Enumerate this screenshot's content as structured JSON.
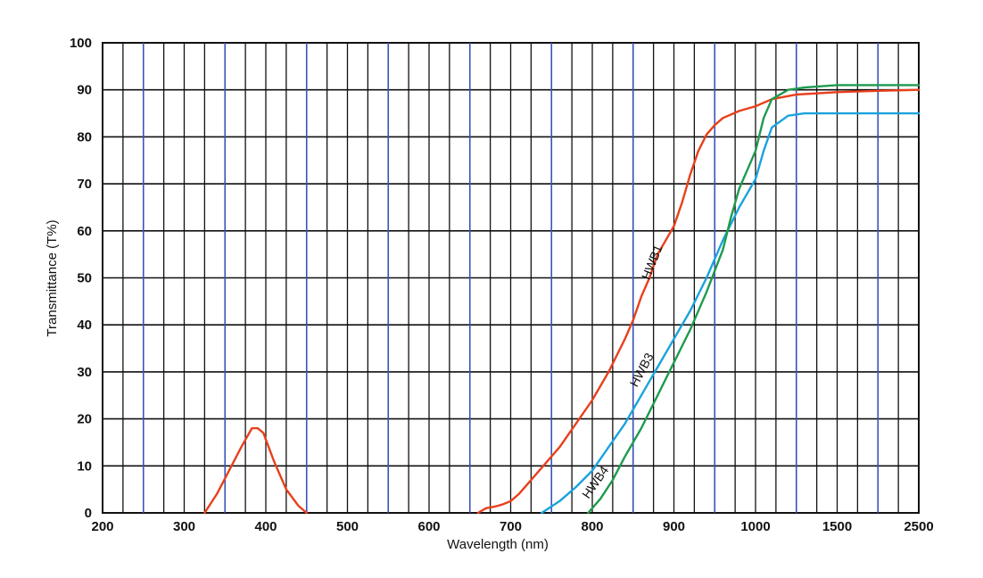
{
  "chart_data": {
    "type": "line",
    "xlabel": "Wavelength (nm)",
    "ylabel": "Transmittance (T%)",
    "ylim": [
      0,
      100
    ],
    "x_scale": "non-linear (200–1000 nm linear, then 1500, 2500)",
    "x_ticks": [
      "200",
      "300",
      "400",
      "500",
      "600",
      "700",
      "800",
      "900",
      "1000",
      "1500",
      "2500"
    ],
    "y_ticks": [
      "0",
      "10",
      "20",
      "30",
      "40",
      "50",
      "60",
      "70",
      "80",
      "90",
      "100"
    ],
    "grid": true,
    "legend": "none",
    "series": [
      {
        "name": "HWB1",
        "color": "#e8401c",
        "segments": [
          [
            [
              325,
              0
            ],
            [
              340,
              4
            ],
            [
              355,
              9
            ],
            [
              370,
              14
            ],
            [
              383,
              18
            ],
            [
              390,
              18
            ],
            [
              397,
              17
            ],
            [
              410,
              11
            ],
            [
              425,
              5
            ],
            [
              440,
              1.5
            ],
            [
              450,
              0
            ]
          ],
          [
            [
              660,
              0
            ],
            [
              670,
              1
            ],
            [
              680,
              1.3
            ],
            [
              690,
              1.8
            ],
            [
              700,
              2.5
            ],
            [
              710,
              4
            ],
            [
              720,
              6
            ],
            [
              740,
              10
            ],
            [
              760,
              14
            ],
            [
              780,
              19
            ],
            [
              800,
              24
            ],
            [
              820,
              30
            ],
            [
              840,
              37
            ],
            [
              850,
              41
            ],
            [
              860,
              46
            ],
            [
              870,
              50
            ],
            [
              880,
              55
            ],
            [
              890,
              58
            ],
            [
              900,
              61
            ],
            [
              910,
              66
            ],
            [
              920,
              72
            ],
            [
              930,
              77
            ],
            [
              940,
              80.5
            ],
            [
              950,
              82.5
            ],
            [
              960,
              84
            ],
            [
              980,
              85.5
            ],
            [
              1000,
              86.5
            ],
            [
              1100,
              88
            ],
            [
              1250,
              89
            ],
            [
              1500,
              89.5
            ],
            [
              2000,
              89.8
            ],
            [
              2500,
              90
            ]
          ]
        ]
      },
      {
        "name": "HWB3",
        "color": "#1aa3dd",
        "segments": [
          [
            [
              738,
              0
            ],
            [
              760,
              2.5
            ],
            [
              780,
              5.5
            ],
            [
              800,
              9
            ],
            [
              820,
              14
            ],
            [
              840,
              19
            ],
            [
              860,
              25
            ],
            [
              880,
              31
            ],
            [
              900,
              37
            ],
            [
              920,
              43
            ],
            [
              940,
              50
            ],
            [
              960,
              58
            ],
            [
              980,
              65
            ],
            [
              1000,
              71
            ],
            [
              1050,
              77
            ],
            [
              1100,
              82
            ],
            [
              1200,
              84.5
            ],
            [
              1300,
              85
            ],
            [
              1500,
              85
            ],
            [
              2000,
              85
            ],
            [
              2500,
              85
            ]
          ]
        ]
      },
      {
        "name": "HWB4",
        "color": "#1e9b4e",
        "segments": [
          [
            [
              795,
              0
            ],
            [
              810,
              3
            ],
            [
              825,
              7
            ],
            [
              840,
              12
            ],
            [
              860,
              18
            ],
            [
              880,
              25
            ],
            [
              900,
              32
            ],
            [
              920,
              39
            ],
            [
              940,
              47
            ],
            [
              960,
              56
            ],
            [
              970,
              63
            ],
            [
              980,
              69
            ],
            [
              990,
              73
            ],
            [
              1000,
              77
            ],
            [
              1050,
              84
            ],
            [
              1100,
              88
            ],
            [
              1200,
              90
            ],
            [
              1300,
              90.5
            ],
            [
              1500,
              91
            ],
            [
              2000,
              91
            ],
            [
              2500,
              91
            ]
          ]
        ]
      }
    ],
    "annotations": [
      {
        "text": "HWB1",
        "at": [
          878,
          53
        ],
        "angle": -68
      },
      {
        "text": "HWB3",
        "at": [
          865,
          30
        ],
        "angle": -62
      },
      {
        "text": "HWB4",
        "at": [
          808,
          6
        ],
        "angle": -55
      }
    ]
  }
}
